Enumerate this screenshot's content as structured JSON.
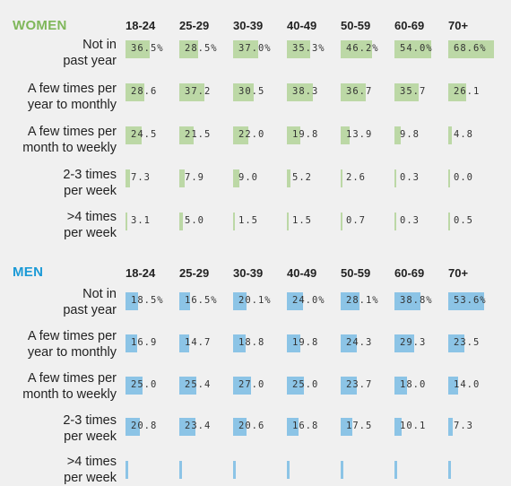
{
  "columns": [
    "18-24",
    "25-29",
    "30-39",
    "40-49",
    "50-59",
    "60-69",
    "70+"
  ],
  "colors": {
    "women": "#bcd8a6",
    "men": "#8cc4e6",
    "women_title": "#7fb75a",
    "men_title": "#1b9ad6"
  },
  "chart_data": [
    {
      "type": "table",
      "title": "WOMEN",
      "categories": [
        "18-24",
        "25-29",
        "30-39",
        "40-49",
        "50-59",
        "60-69",
        "70+"
      ],
      "rows": [
        {
          "label": [
            "Not in",
            "past year"
          ],
          "values": [
            "36.5%",
            "28.5%",
            "37.0%",
            "35.3%",
            "46.2%",
            "54.0%",
            "68.6%"
          ]
        },
        {
          "label": [
            "A few times per",
            "year to monthly"
          ],
          "values": [
            "28.6",
            "37.2",
            "30.5",
            "38.3",
            "36.7",
            "35.7",
            "26.1"
          ]
        },
        {
          "label": [
            "A few times per",
            "month to weekly"
          ],
          "values": [
            "24.5",
            "21.5",
            "22.0",
            "19.8",
            "13.9",
            "9.8",
            "4.8"
          ]
        },
        {
          "label": [
            "2-3 times",
            "per week"
          ],
          "values": [
            "7.3",
            "7.9",
            "9.0",
            "5.2",
            "2.6",
            "0.3",
            "0.0"
          ]
        },
        {
          "label": [
            ">4 times",
            "per week"
          ],
          "values": [
            "3.1",
            "5.0",
            "1.5",
            "1.5",
            "0.7",
            "0.3",
            "0.5"
          ]
        }
      ]
    },
    {
      "type": "table",
      "title": "MEN",
      "categories": [
        "18-24",
        "25-29",
        "30-39",
        "40-49",
        "50-59",
        "60-69",
        "70+"
      ],
      "rows": [
        {
          "label": [
            "Not in",
            "past year"
          ],
          "values": [
            "18.5%",
            "16.5%",
            "20.1%",
            "24.0%",
            "28.1%",
            "38.8%",
            "53.6%"
          ]
        },
        {
          "label": [
            "A few times per",
            "year to monthly"
          ],
          "values": [
            "16.9",
            "14.7",
            "18.8",
            "19.8",
            "24.3",
            "29.3",
            "23.5"
          ]
        },
        {
          "label": [
            "A few times per",
            "month to weekly"
          ],
          "values": [
            "25.0",
            "25.4",
            "27.0",
            "25.0",
            "23.7",
            "18.0",
            "14.0"
          ]
        },
        {
          "label": [
            "2-3 times",
            "per week"
          ],
          "values": [
            "20.8",
            "23.4",
            "20.6",
            "16.8",
            "17.5",
            "10.1",
            "7.3"
          ]
        },
        {
          "label": [
            ">4 times",
            "per week"
          ],
          "values": [
            "",
            "",
            "",
            "",
            "",
            "",
            ""
          ]
        }
      ]
    }
  ]
}
